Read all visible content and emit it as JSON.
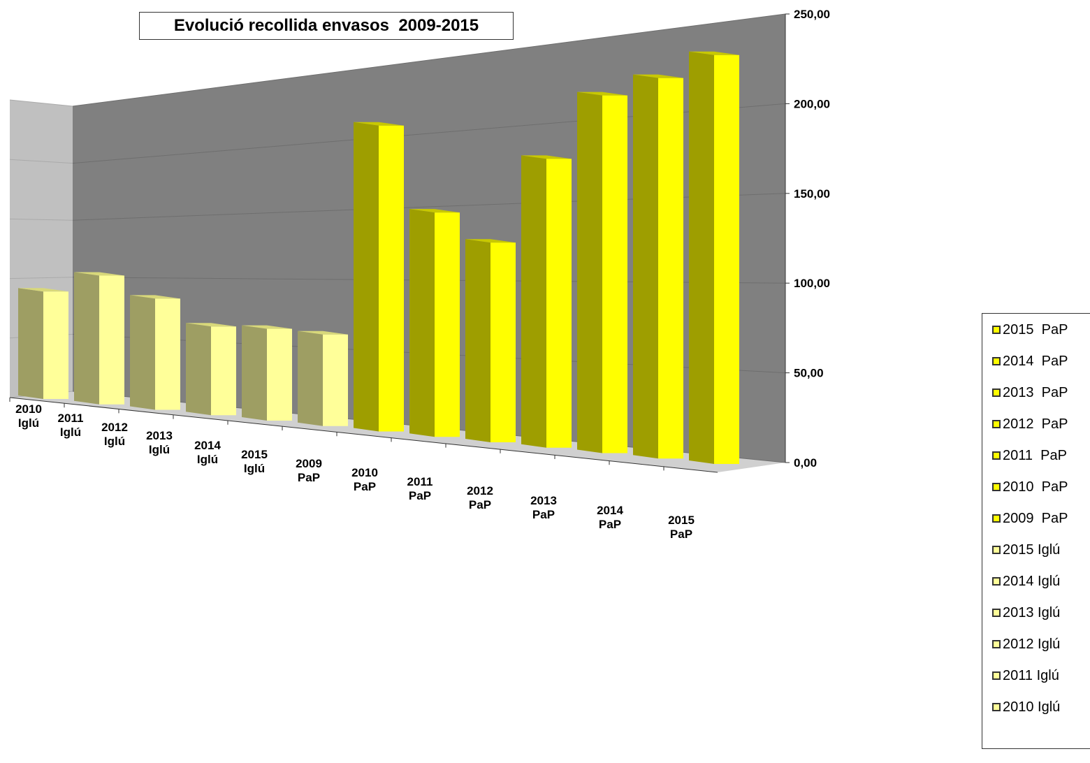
{
  "chart_data": {
    "type": "bar",
    "title": "Evolució recollida envasos  2009-2015",
    "categories": [
      "2010 Iglú",
      "2011 Iglú",
      "2012 Iglú",
      "2013 Iglú",
      "2014 Iglú",
      "2015 Iglú",
      "2009 PaP",
      "2010 PaP",
      "2011 PaP",
      "2012 PaP",
      "2013 PaP",
      "2014 PaP",
      "2015 PaP"
    ],
    "values": [
      87.2,
      99.8,
      82.4,
      63.0,
      62.6,
      60.0,
      193.0,
      136.5,
      117.3,
      164.0,
      196.5,
      202.5,
      211.0
    ],
    "ylim": [
      0,
      250
    ],
    "yticks": [
      "0,00",
      "50,00",
      "100,00",
      "150,00",
      "200,00",
      "250,00"
    ],
    "xlabel": "",
    "ylabel": "",
    "grid": true,
    "legend_position": "right",
    "legend": [
      "2015  PaP",
      "2014  PaP",
      "2013  PaP",
      "2012  PaP",
      "2011  PaP",
      "2010  PaP",
      "2009  PaP",
      "2015 Iglú",
      "2014 Iglú",
      "2013 Iglú",
      "2012 Iglú",
      "2011 Iglú",
      "2010 Iglú"
    ],
    "colors": {
      "iglu_front": "#ffff99",
      "iglu_side": "#9e9e63",
      "pap_front": "#ffff00",
      "pap_side": "#9e9e00",
      "back_wall": "#808080",
      "side_wall": "#c0c0c0"
    }
  }
}
